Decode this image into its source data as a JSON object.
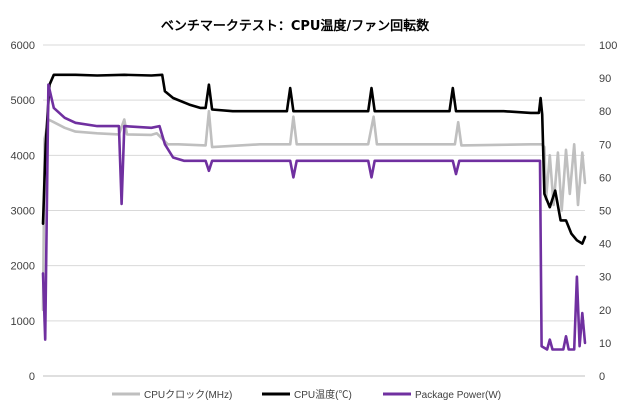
{
  "chart_data": {
    "type": "line",
    "title": "ベンチマークテスト：CPU温度/ファン回転数",
    "x_range": [
      0,
      1
    ],
    "y_left": {
      "range": [
        0,
        6000
      ],
      "ticks": [
        0,
        1000,
        2000,
        3000,
        4000,
        5000,
        6000
      ],
      "tick_labels": [
        "0",
        "1000",
        "2000",
        "3000",
        "4000",
        "5000",
        "6000"
      ]
    },
    "y_right": {
      "range": [
        0,
        100
      ],
      "ticks": [
        0,
        10,
        20,
        30,
        40,
        50,
        60,
        70,
        80,
        90,
        100
      ],
      "tick_labels": [
        "0",
        "10",
        "20",
        "30",
        "40",
        "50",
        "60",
        "70",
        "80",
        "90",
        "100"
      ]
    },
    "grid": "horizontal",
    "legend_position": "bottom",
    "series": [
      {
        "name": "CPUクロック(MHz)",
        "axis": "left",
        "color": "#bfbfbf",
        "points": [
          [
            0.0,
            1200
          ],
          [
            0.003,
            4300
          ],
          [
            0.01,
            4650
          ],
          [
            0.02,
            4600
          ],
          [
            0.04,
            4500
          ],
          [
            0.06,
            4430
          ],
          [
            0.1,
            4400
          ],
          [
            0.14,
            4380
          ],
          [
            0.15,
            4650
          ],
          [
            0.155,
            4380
          ],
          [
            0.2,
            4370
          ],
          [
            0.21,
            4400
          ],
          [
            0.23,
            4200
          ],
          [
            0.25,
            4200
          ],
          [
            0.3,
            4180
          ],
          [
            0.306,
            4800
          ],
          [
            0.312,
            4150
          ],
          [
            0.4,
            4200
          ],
          [
            0.456,
            4200
          ],
          [
            0.462,
            4700
          ],
          [
            0.468,
            4200
          ],
          [
            0.6,
            4200
          ],
          [
            0.61,
            4700
          ],
          [
            0.616,
            4200
          ],
          [
            0.7,
            4200
          ],
          [
            0.76,
            4200
          ],
          [
            0.766,
            4600
          ],
          [
            0.772,
            4180
          ],
          [
            0.9,
            4200
          ],
          [
            0.92,
            4200
          ],
          [
            0.925,
            4150
          ],
          [
            0.928,
            3200
          ],
          [
            0.935,
            4000
          ],
          [
            0.942,
            3100
          ],
          [
            0.95,
            4050
          ],
          [
            0.957,
            3000
          ],
          [
            0.965,
            4100
          ],
          [
            0.972,
            3300
          ],
          [
            0.98,
            4200
          ],
          [
            0.987,
            3100
          ],
          [
            0.995,
            4050
          ],
          [
            1.0,
            3500
          ]
        ]
      },
      {
        "name": "CPU温度(℃)",
        "axis": "right",
        "color": "#000000",
        "points": [
          [
            0.0,
            46
          ],
          [
            0.005,
            70
          ],
          [
            0.012,
            88
          ],
          [
            0.02,
            91
          ],
          [
            0.06,
            91
          ],
          [
            0.1,
            90.8
          ],
          [
            0.15,
            91
          ],
          [
            0.2,
            90.8
          ],
          [
            0.22,
            91
          ],
          [
            0.225,
            86
          ],
          [
            0.24,
            84
          ],
          [
            0.27,
            82
          ],
          [
            0.29,
            81
          ],
          [
            0.3,
            81
          ],
          [
            0.306,
            88
          ],
          [
            0.312,
            80.5
          ],
          [
            0.35,
            80
          ],
          [
            0.4,
            80
          ],
          [
            0.45,
            80
          ],
          [
            0.456,
            87
          ],
          [
            0.462,
            80
          ],
          [
            0.55,
            80
          ],
          [
            0.6,
            80
          ],
          [
            0.606,
            87
          ],
          [
            0.612,
            80
          ],
          [
            0.7,
            80
          ],
          [
            0.75,
            80
          ],
          [
            0.756,
            87
          ],
          [
            0.762,
            80
          ],
          [
            0.85,
            80
          ],
          [
            0.9,
            79.5
          ],
          [
            0.915,
            79.5
          ],
          [
            0.918,
            84
          ],
          [
            0.921,
            79
          ],
          [
            0.925,
            55
          ],
          [
            0.935,
            51
          ],
          [
            0.945,
            56
          ],
          [
            0.955,
            47
          ],
          [
            0.965,
            47
          ],
          [
            0.975,
            43
          ],
          [
            0.985,
            41
          ],
          [
            0.995,
            40
          ],
          [
            1.0,
            42
          ]
        ]
      },
      {
        "name": "Package Power(W)",
        "axis": "right",
        "color": "#7030a0",
        "points": [
          [
            0.0,
            31
          ],
          [
            0.004,
            11
          ],
          [
            0.01,
            88
          ],
          [
            0.02,
            81
          ],
          [
            0.04,
            78
          ],
          [
            0.06,
            76.5
          ],
          [
            0.1,
            75.5
          ],
          [
            0.14,
            75.5
          ],
          [
            0.145,
            52
          ],
          [
            0.15,
            75.5
          ],
          [
            0.2,
            75
          ],
          [
            0.215,
            75.5
          ],
          [
            0.225,
            70
          ],
          [
            0.24,
            66
          ],
          [
            0.26,
            65
          ],
          [
            0.3,
            65
          ],
          [
            0.306,
            62
          ],
          [
            0.312,
            65
          ],
          [
            0.4,
            65
          ],
          [
            0.456,
            65
          ],
          [
            0.462,
            60
          ],
          [
            0.468,
            65
          ],
          [
            0.6,
            65
          ],
          [
            0.606,
            60
          ],
          [
            0.612,
            65
          ],
          [
            0.7,
            65
          ],
          [
            0.756,
            65
          ],
          [
            0.762,
            61
          ],
          [
            0.768,
            65
          ],
          [
            0.85,
            65
          ],
          [
            0.917,
            65
          ],
          [
            0.92,
            9
          ],
          [
            0.93,
            8
          ],
          [
            0.935,
            11
          ],
          [
            0.94,
            8
          ],
          [
            0.95,
            8
          ],
          [
            0.96,
            8
          ],
          [
            0.965,
            12
          ],
          [
            0.97,
            8
          ],
          [
            0.98,
            8
          ],
          [
            0.985,
            30
          ],
          [
            0.99,
            9
          ],
          [
            0.995,
            19
          ],
          [
            1.0,
            10
          ]
        ]
      }
    ]
  }
}
